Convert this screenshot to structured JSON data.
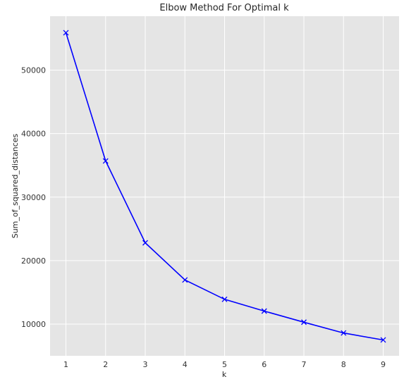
{
  "chart_data": {
    "type": "line",
    "title": "Elbow Method For Optimal k",
    "xlabel": "k",
    "ylabel": "Sum_of_squared_distances",
    "x": [
      1,
      2,
      3,
      4,
      5,
      6,
      7,
      8,
      9
    ],
    "series": [
      {
        "values": [
          55900,
          35700,
          22800,
          16950,
          13900,
          12050,
          10300,
          8600,
          7500
        ]
      }
    ],
    "xticks": [
      1,
      2,
      3,
      4,
      5,
      6,
      7,
      8,
      9
    ],
    "yticks": [
      10000,
      20000,
      30000,
      40000,
      50000
    ],
    "xlim": [
      0.6,
      9.4
    ],
    "ylim": [
      5000,
      58500
    ],
    "marker": "x",
    "grid": true,
    "colors": {
      "line": "#0000ff",
      "background": "#e5e5e5",
      "grid": "#ffffff"
    }
  }
}
